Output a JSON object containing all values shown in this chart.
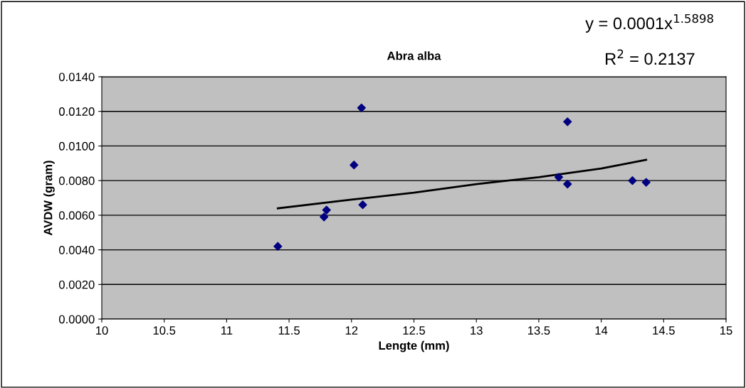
{
  "chart_data": {
    "type": "scatter",
    "title": "Abra alba",
    "xlabel": "Lengte (mm)",
    "ylabel": "AVDW (gram)",
    "annotations": [
      "y = 0.0001x$^{1.5898}$",
      "R$^{2}$ = 0.2137"
    ],
    "series": [
      {
        "color": "#000080",
        "marker": "diamond",
        "x": [
          11.41,
          11.78,
          11.8,
          12.02,
          12.08,
          12.09,
          13.66,
          13.73,
          13.73,
          14.25,
          14.36
        ],
        "values": [
          0.0042,
          0.0059,
          0.0063,
          0.0089,
          0.0122,
          0.0066,
          0.0082,
          0.0114,
          0.0078,
          0.008,
          0.0079
        ]
      },
      {
        "type": "line",
        "color": "#000000",
        "x": [
          11.41,
          12.0,
          12.5,
          13.0,
          13.5,
          14.0,
          14.36
        ],
        "values": [
          0.0064,
          0.0069,
          0.0073,
          0.0078,
          0.0082,
          0.0087,
          0.0092
        ]
      }
    ],
    "xlim": [
      10,
      15
    ],
    "xticks": [
      10,
      10.5,
      11,
      11.5,
      12,
      12.5,
      13,
      13.5,
      14,
      14.5,
      15
    ],
    "ylim": [
      0,
      0.014
    ],
    "yticks": [
      {
        "value": 0,
        "label": "0.0000"
      },
      {
        "value": 0.002,
        "label": "0.0020"
      },
      {
        "value": 0.004,
        "label": "0.0040"
      },
      {
        "value": 0.006,
        "label": "0.0060"
      },
      {
        "value": 0.008,
        "label": "0.0080"
      },
      {
        "value": 0.01,
        "label": "0.0100"
      },
      {
        "value": 0.012,
        "label": "0.0120"
      },
      {
        "value": 0.014,
        "label": "0.0140"
      }
    ],
    "grid": "y"
  }
}
